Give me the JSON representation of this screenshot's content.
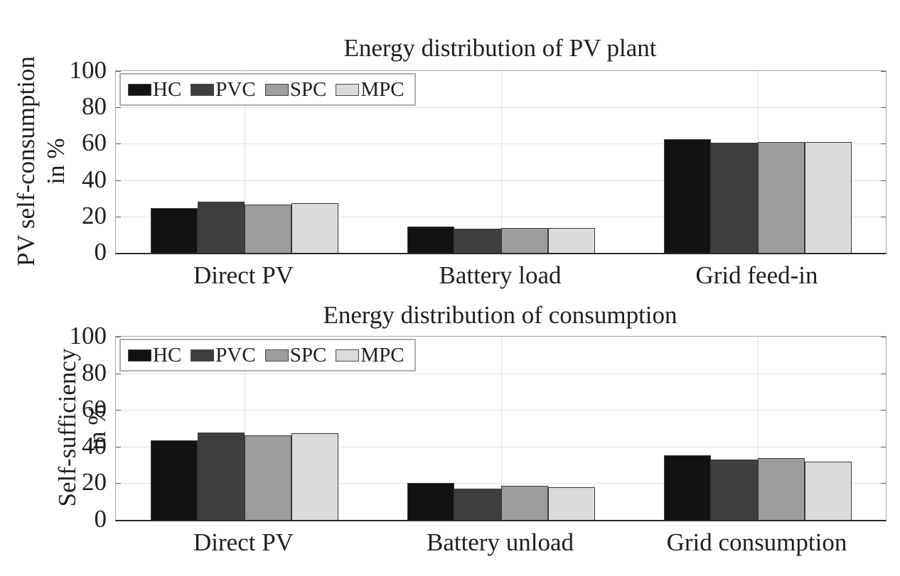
{
  "figure": {
    "background": "#ffffff",
    "text_color": "#1f1f1f",
    "gridline_color": "#e2e2e2",
    "axis_box_color": "#a6a6a6",
    "x_axis_color": "#2b2b2b",
    "bar_edge_color": "#3a3a3a"
  },
  "legend": {
    "items": [
      {
        "label": "HC",
        "color": "#121212"
      },
      {
        "label": "PVC",
        "color": "#3f3f3f"
      },
      {
        "label": "SPC",
        "color": "#9d9d9d"
      },
      {
        "label": "MPC",
        "color": "#dbdbdb"
      }
    ],
    "position": "top-left"
  },
  "chart_data": [
    {
      "type": "bar",
      "title": "Energy distribution of PV plant",
      "ylabel": "PV self-consumption in %",
      "ylabel_lines": [
        "PV self-consumption",
        "in %"
      ],
      "xlabel": "",
      "categories": [
        "Direct PV",
        "Battery load",
        "Grid feed-in"
      ],
      "series": [
        {
          "name": "HC",
          "color": "#121212",
          "values": [
            24.5,
            14.3,
            62.5
          ]
        },
        {
          "name": "PVC",
          "color": "#3f3f3f",
          "values": [
            28.0,
            13.3,
            60.5
          ]
        },
        {
          "name": "SPC",
          "color": "#9d9d9d",
          "values": [
            26.6,
            13.8,
            61.0
          ]
        },
        {
          "name": "MPC",
          "color": "#dbdbdb",
          "values": [
            27.3,
            13.6,
            60.8
          ]
        }
      ],
      "ylim": [
        0,
        100
      ],
      "yticks": [
        0,
        20,
        40,
        60,
        80,
        100
      ],
      "grid": true,
      "legend_position": "top-left"
    },
    {
      "type": "bar",
      "title": "Energy distribution of consumption",
      "ylabel": "Self-sufficiency in %",
      "ylabel_lines": [
        "Self-sufficiency",
        "in %"
      ],
      "xlabel": "",
      "categories": [
        "Direct PV",
        "Battery unload",
        "Grid consumption"
      ],
      "series": [
        {
          "name": "HC",
          "color": "#121212",
          "values": [
            43.3,
            20.2,
            35.3
          ]
        },
        {
          "name": "PVC",
          "color": "#3f3f3f",
          "values": [
            47.6,
            17.2,
            32.9
          ]
        },
        {
          "name": "SPC",
          "color": "#9d9d9d",
          "values": [
            46.2,
            18.5,
            33.7
          ]
        },
        {
          "name": "MPC",
          "color": "#dbdbdb",
          "values": [
            47.2,
            17.8,
            31.7
          ]
        }
      ],
      "ylim": [
        0,
        100
      ],
      "yticks": [
        0,
        20,
        40,
        60,
        80,
        100
      ],
      "grid": true,
      "legend_position": "top-left"
    }
  ]
}
